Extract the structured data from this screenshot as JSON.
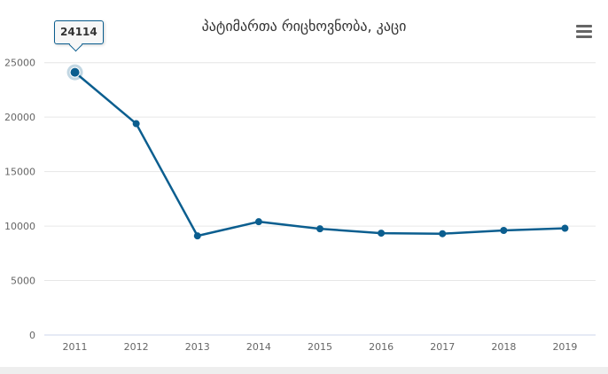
{
  "chart_data": {
    "type": "line",
    "title": "პატიმართა რიცხოვნობა, კაცი",
    "x": [
      "2011",
      "2012",
      "2013",
      "2014",
      "2015",
      "2016",
      "2017",
      "2018",
      "2019"
    ],
    "series": [
      {
        "values": [
          24114,
          19400,
          9100,
          10400,
          9750,
          9350,
          9300,
          9600,
          9800
        ]
      }
    ],
    "yticks": [
      "0",
      "5000",
      "10000",
      "15000",
      "20000",
      "25000"
    ],
    "ylim": [
      0,
      27500
    ],
    "grid": true,
    "legend": "none",
    "line_color": "#0b5e8f",
    "highlight": {
      "category": "2011",
      "label": "24114"
    }
  },
  "menu": {
    "icon": "hamburger-menu-icon"
  }
}
